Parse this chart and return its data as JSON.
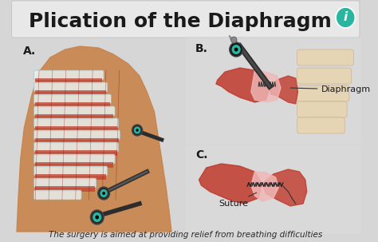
{
  "title": "Plication of the Diaphragm",
  "subtitle": "The surgery is aimed at providing relief from breathing difficulties",
  "label_A": "A.",
  "label_B": "B.",
  "label_C": "C.",
  "label_diaphragm": "Diaphragm",
  "label_suture": "Suture",
  "bg_color": "#d6d6d6",
  "title_box_color": "#e8e8e8",
  "title_fontsize": 18,
  "subtitle_fontsize": 7.5,
  "label_fontsize": 10,
  "annotation_fontsize": 8,
  "icon_color": "#2ab5a0",
  "skin_color": "#c8834a",
  "muscle_red": "#c0392b",
  "muscle_light_red": "#e8a0a0",
  "rib_color": "#b8d8d8",
  "rib_white": "#e8f0f0",
  "tool_dark": "#2c2c2c",
  "tool_teal": "#2ab5a0",
  "cream_color": "#e8d5b0",
  "pink_light": "#f0b8b8"
}
